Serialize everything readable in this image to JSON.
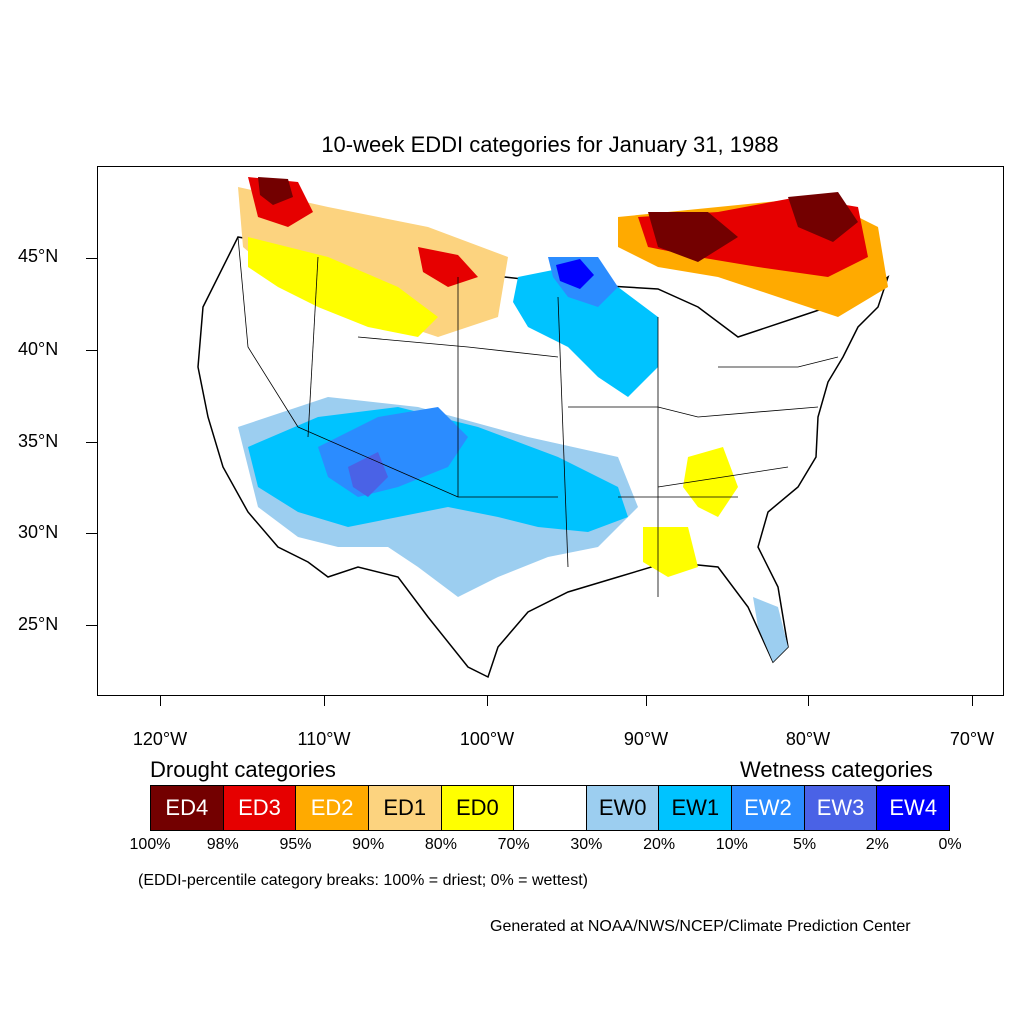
{
  "title": "10-week EDDI categories for January 31, 1988",
  "lat_labels": [
    "45°N",
    "40°N",
    "35°N",
    "30°N",
    "25°N"
  ],
  "lon_labels": [
    "120°W",
    "110°W",
    "100°W",
    "90°W",
    "80°W",
    "70°W"
  ],
  "legend": {
    "drought_heading": "Drought categories",
    "wetness_heading": "Wetness categories",
    "categories": [
      {
        "label": "ED4",
        "color": "#730000",
        "text_color": "#ffffff"
      },
      {
        "label": "ED3",
        "color": "#e60000",
        "text_color": "#ffffff"
      },
      {
        "label": "ED2",
        "color": "#ffaa00",
        "text_color": "#ffffff"
      },
      {
        "label": "ED1",
        "color": "#fcd37f",
        "text_color": "#000000"
      },
      {
        "label": "ED0",
        "color": "#ffff00",
        "text_color": "#000000"
      },
      {
        "label": "",
        "color": "#ffffff",
        "text_color": "#000000"
      },
      {
        "label": "EW0",
        "color": "#9ccef0",
        "text_color": "#000000"
      },
      {
        "label": "EW1",
        "color": "#00c3ff",
        "text_color": "#000000"
      },
      {
        "label": "EW2",
        "color": "#2b8cff",
        "text_color": "#ffffff"
      },
      {
        "label": "EW3",
        "color": "#4a62e6",
        "text_color": "#ffffff"
      },
      {
        "label": "EW4",
        "color": "#0000ff",
        "text_color": "#ffffff"
      }
    ],
    "breaks": [
      "100%",
      "98%",
      "95%",
      "90%",
      "80%",
      "70%",
      "30%",
      "20%",
      "10%",
      "5%",
      "2%",
      "0%"
    ]
  },
  "note": "(EDDI-percentile category breaks: 100% = driest; 0% = wettest)",
  "credit": "Generated at NOAA/NWS/NCEP/Climate Prediction Center"
}
